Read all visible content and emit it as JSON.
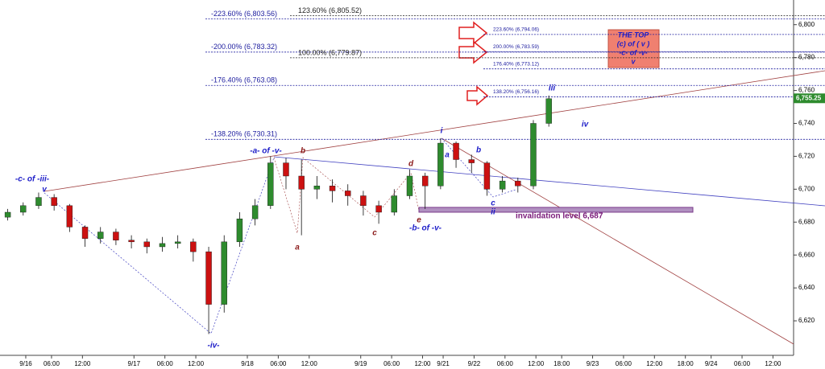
{
  "chart_data": {
    "type": "candlestick",
    "x": [
      1.5,
      4.5,
      7.5,
      10.5,
      13.5,
      16.5,
      19.5,
      22.5,
      25.5,
      28.5,
      31.5,
      34.5,
      37.5,
      40.5,
      43.5,
      46.5,
      49.5,
      52.5,
      55.5,
      58.5,
      61.5,
      64.5,
      67.5,
      70.5,
      73.5,
      76.5,
      79.5,
      82.5,
      85.5,
      88.5,
      91.5,
      94.5,
      97.5,
      100.5,
      103.5,
      106.5
    ],
    "open": [
      6683,
      6686,
      6690,
      6695,
      6690,
      6677,
      6670,
      6674,
      6669,
      6668,
      6665,
      6667,
      6668,
      6662,
      6630,
      6668,
      6682,
      6690,
      6716,
      6708,
      6700,
      6702,
      6699,
      6696,
      6690,
      6686,
      6696,
      6708,
      6702,
      6728,
      6718,
      6716,
      6700,
      6705,
      6702,
      6740
    ],
    "high": [
      6688,
      6692,
      6698,
      6697,
      6691,
      6678,
      6677,
      6676,
      6672,
      6670,
      6671,
      6672,
      6670,
      6665,
      6672,
      6686,
      6694,
      6720,
      6719,
      6718,
      6708,
      6706,
      6703,
      6699,
      6693,
      6700,
      6712,
      6710,
      6731,
      6729,
      6721,
      6717,
      6708,
      6707,
      6742,
      6757
    ],
    "low": [
      6681,
      6684,
      6688,
      6687,
      6674,
      6665,
      6667,
      6666,
      6664,
      6661,
      6662,
      6664,
      6656,
      6612,
      6625,
      6665,
      6678,
      6688,
      6700,
      6672,
      6694,
      6692,
      6690,
      6684,
      6679,
      6684,
      6694,
      6688,
      6700,
      6713,
      6710,
      6696,
      6698,
      6698,
      6700,
      6738
    ],
    "close": [
      6686,
      6690,
      6695,
      6690,
      6677,
      6670,
      6674,
      6669,
      6668,
      6665,
      6667,
      6668,
      6662,
      6630,
      6668,
      6682,
      6690,
      6716,
      6708,
      6700,
      6702,
      6699,
      6696,
      6690,
      6686,
      6696,
      6708,
      6702,
      6728,
      6718,
      6716,
      6700,
      6705,
      6702,
      6740,
      6755
    ],
    "up_color": "#2e8b2e",
    "down_color": "#cc1111",
    "xlim": [
      0,
      154
    ],
    "ylim": [
      6600,
      6815
    ],
    "xticks": [
      {
        "value": 5,
        "label": "9/16"
      },
      {
        "value": 10,
        "label": "06:00"
      },
      {
        "value": 16,
        "label": "12:00"
      },
      {
        "value": 26,
        "label": "9/17"
      },
      {
        "value": 32,
        "label": "06:00"
      },
      {
        "value": 38,
        "label": "12:00"
      },
      {
        "value": 48,
        "label": "9/18"
      },
      {
        "value": 54,
        "label": "06:00"
      },
      {
        "value": 60,
        "label": "12:00"
      },
      {
        "value": 70,
        "label": "9/19"
      },
      {
        "value": 76,
        "label": "06:00"
      },
      {
        "value": 82,
        "label": "12:00"
      },
      {
        "value": 86,
        "label": "9/21"
      },
      {
        "value": 92,
        "label": "9/22"
      },
      {
        "value": 98,
        "label": "06:00"
      },
      {
        "value": 104,
        "label": "12:00"
      },
      {
        "value": 109,
        "label": "18:00"
      },
      {
        "value": 115,
        "label": "9/23"
      },
      {
        "value": 121,
        "label": "06:00"
      },
      {
        "value": 127,
        "label": "12:00"
      },
      {
        "value": 133,
        "label": "18:00"
      },
      {
        "value": 138,
        "label": "9/24"
      },
      {
        "value": 144,
        "label": "06:00"
      },
      {
        "value": 150,
        "label": "12:00"
      }
    ],
    "yticks": [
      {
        "value": 6620,
        "label": "6,620"
      },
      {
        "value": 6640,
        "label": "6,640"
      },
      {
        "value": 6660,
        "label": "6,660"
      },
      {
        "value": 6680,
        "label": "6,680"
      },
      {
        "value": 6700,
        "label": "6,700"
      },
      {
        "value": 6720,
        "label": "6,720"
      },
      {
        "value": 6740,
        "label": "6,740"
      },
      {
        "value": 6760,
        "label": "6,760"
      },
      {
        "value": 6780,
        "label": "6,780"
      },
      {
        "value": 6800,
        "label": "6,800"
      }
    ],
    "last_price": {
      "value": 6755.25,
      "label": "6,755.25"
    },
    "fib_levels_left": [
      {
        "label": "-223.60% (6,803.56)",
        "value": 6803.56
      },
      {
        "label": "-200.00% (6,783.32)",
        "value": 6783.32
      },
      {
        "label": "-176.40% (6,763.08)",
        "value": 6763.08
      },
      {
        "label": "-138.20% (6,730.31)",
        "value": 6730.31
      }
    ],
    "fib_levels_mid": [
      {
        "label": "123.60% (6,805.52)",
        "value": 6805.52
      },
      {
        "label": "100.00% (6,779.87)",
        "value": 6779.87
      }
    ],
    "fib_levels_right": [
      {
        "label": "223.60% (6,794.06)",
        "value": 6794.06
      },
      {
        "label": "200.00% (6,783.59)",
        "value": 6783.59
      },
      {
        "label": "176.40% (6,773.12)",
        "value": 6773.12
      },
      {
        "label": "138.20% (6,756.16)",
        "value": 6756.16
      }
    ],
    "invalidation": {
      "label": "invalidation level 6,687",
      "value": 6687
    },
    "top_box": [
      "THE TOP",
      "(c) of ( v )",
      "-c- of -v-",
      "v"
    ],
    "annotations": [
      "-c- of -iii-",
      "v",
      "-iv-",
      "-a- of -v-",
      "b",
      "a",
      "c",
      "d",
      "e",
      "-b- of -v-",
      "i",
      "a",
      "b",
      "c",
      "ii",
      "iii",
      "iv"
    ]
  }
}
